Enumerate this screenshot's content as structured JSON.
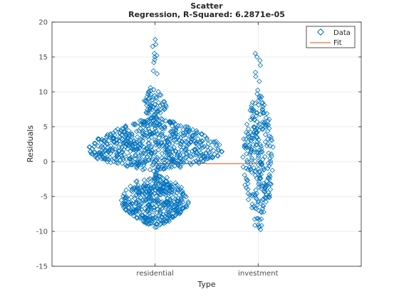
{
  "chart_data": {
    "type": "scatter",
    "title": "Scatter",
    "subtitle": "Regression, R-Squared: 6.2871e-05",
    "xlabel": "Type",
    "ylabel": "Residuals",
    "categories": [
      "residential",
      "investment"
    ],
    "xlim": [
      0,
      3
    ],
    "ylim": [
      -15,
      20
    ],
    "yticks": [
      -15,
      -10,
      -5,
      0,
      5,
      10,
      15,
      20
    ],
    "grid": true,
    "legend_position": "top-right",
    "series": [
      {
        "name": "Data",
        "marker": "diamond-open",
        "color": "#0072BD",
        "groups": [
          {
            "category": "residential",
            "clusters": [
              {
                "y_min": -9.5,
                "y_max": -1.5,
                "center": -5.5,
                "max_halfwidth": 0.33,
                "count": 420
              },
              {
                "y_min": -1.5,
                "y_max": 6.5,
                "center": 1.5,
                "max_halfwidth": 0.65,
                "count": 620
              },
              {
                "y_min": 6.5,
                "y_max": 11.5,
                "center": 7.5,
                "max_halfwidth": 0.12,
                "count": 60
              }
            ],
            "outliers": [
              17.5,
              16.8,
              16.5,
              15.5,
              15.2,
              15.0,
              14.6,
              14.2,
              13.0,
              12.6
            ]
          },
          {
            "category": "investment",
            "clusters": [
              {
                "y_min": -10.8,
                "y_max": 10.5,
                "center": 1.0,
                "max_halfwidth": 0.15,
                "count": 260
              }
            ],
            "outliers": [
              15.5,
              15.0,
              14.5,
              13.8,
              12.8,
              12.2,
              11.5
            ]
          }
        ]
      },
      {
        "name": "Fit",
        "type": "line",
        "color": "#D95319",
        "x": [
          1,
          1.5,
          1.5,
          2
        ],
        "y": [
          -0.25,
          -0.25,
          -0.3,
          -0.3
        ]
      }
    ]
  }
}
